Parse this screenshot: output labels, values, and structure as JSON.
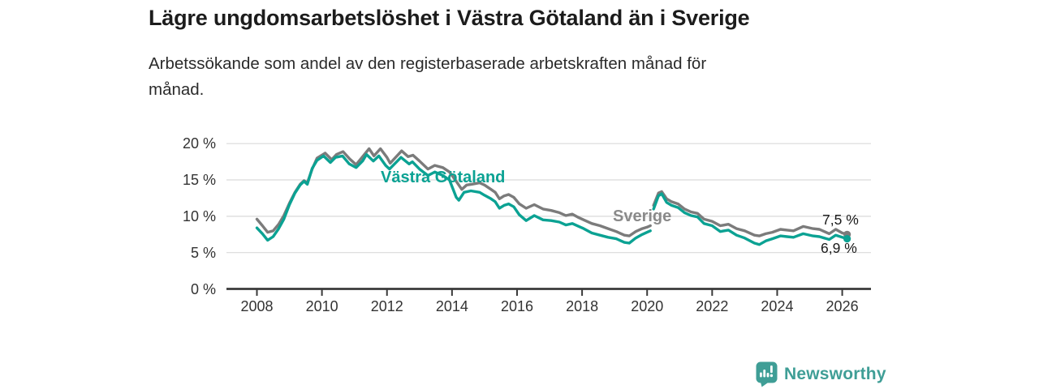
{
  "title": "Lägre ungdomsarbetslöshet i Västra Götaland än i Sverige",
  "subtitle_lines": [
    "Arbetssökande som andel av den registerbaserade arbetskraften månad för",
    "månad."
  ],
  "branding": {
    "name": "Newsworthy",
    "color": "#3f9e96"
  },
  "colors": {
    "sverige_line": "#7b7b7b",
    "sverige_label": "#8a8a8a",
    "vastra_gotaland": "#0ba293",
    "gridline": "#dadada",
    "axis": "#3a3a3a",
    "tick_text": "#333333"
  },
  "chart_data": {
    "type": "line",
    "title": "Lägre ungdomsarbetslöshet i Västra Götaland än i Sverige",
    "subtitle": "Arbetssökande som andel av den registerbaserade arbetskraften månad för månad.",
    "x_unit": "year (monthly data)",
    "xlim": [
      2007.1,
      2026.9
    ],
    "ylim": [
      0,
      20
    ],
    "grid": "horizontal",
    "legend_position": "inline-labels",
    "x_ticks": [
      2008,
      2010,
      2012,
      2014,
      2016,
      2018,
      2020,
      2022,
      2024,
      2026
    ],
    "x_tick_labels": [
      "2008",
      "2010",
      "2012",
      "2014",
      "2016",
      "2018",
      "2020",
      "2022",
      "2024",
      "2026"
    ],
    "y_ticks": [
      0,
      5,
      10,
      15,
      20
    ],
    "y_tick_labels": [
      "0 %",
      "5 %",
      "10 %",
      "15 %",
      "20 %"
    ],
    "series": [
      {
        "name": "Sverige",
        "end_label": "7,5 %",
        "end_value": 7.5,
        "color": "#7b7b7b",
        "points": [
          [
            2008.0,
            9.6
          ],
          [
            2008.17,
            8.7
          ],
          [
            2008.33,
            7.8
          ],
          [
            2008.5,
            8.0
          ],
          [
            2008.67,
            8.9
          ],
          [
            2008.83,
            10.1
          ],
          [
            2009.0,
            11.8
          ],
          [
            2009.17,
            13.3
          ],
          [
            2009.33,
            14.4
          ],
          [
            2009.45,
            14.9
          ],
          [
            2009.55,
            14.6
          ],
          [
            2009.7,
            16.5
          ],
          [
            2009.85,
            18.0
          ],
          [
            2010.1,
            18.7
          ],
          [
            2010.3,
            17.8
          ],
          [
            2010.45,
            18.5
          ],
          [
            2010.65,
            18.9
          ],
          [
            2010.85,
            17.9
          ],
          [
            2011.05,
            17.1
          ],
          [
            2011.25,
            18.2
          ],
          [
            2011.45,
            19.3
          ],
          [
            2011.6,
            18.3
          ],
          [
            2011.8,
            19.3
          ],
          [
            2012.0,
            18.1
          ],
          [
            2012.1,
            17.3
          ],
          [
            2012.45,
            19.0
          ],
          [
            2012.65,
            18.2
          ],
          [
            2012.8,
            18.4
          ],
          [
            2013.0,
            17.6
          ],
          [
            2013.26,
            16.5
          ],
          [
            2013.47,
            17.0
          ],
          [
            2013.72,
            16.7
          ],
          [
            2013.92,
            16.1
          ],
          [
            2014.13,
            14.8
          ],
          [
            2014.3,
            13.7
          ],
          [
            2014.45,
            14.3
          ],
          [
            2014.6,
            14.4
          ],
          [
            2014.85,
            14.6
          ],
          [
            2015.0,
            14.3
          ],
          [
            2015.2,
            13.7
          ],
          [
            2015.33,
            13.3
          ],
          [
            2015.46,
            12.4
          ],
          [
            2015.6,
            12.8
          ],
          [
            2015.74,
            13.0
          ],
          [
            2015.9,
            12.6
          ],
          [
            2016.07,
            11.7
          ],
          [
            2016.28,
            11.1
          ],
          [
            2016.53,
            11.6
          ],
          [
            2016.8,
            11.0
          ],
          [
            2017.05,
            10.8
          ],
          [
            2017.3,
            10.5
          ],
          [
            2017.5,
            10.1
          ],
          [
            2017.7,
            10.3
          ],
          [
            2017.9,
            9.8
          ],
          [
            2018.05,
            9.5
          ],
          [
            2018.3,
            9.0
          ],
          [
            2018.55,
            8.7
          ],
          [
            2018.8,
            8.3
          ],
          [
            2019.05,
            7.9
          ],
          [
            2019.3,
            7.4
          ],
          [
            2019.45,
            7.3
          ],
          [
            2019.65,
            7.9
          ],
          [
            2019.85,
            8.3
          ],
          [
            2020.0,
            8.5
          ],
          [
            2020.1,
            8.7
          ],
          [
            2020.15,
            null
          ],
          [
            2020.2,
            11.5
          ],
          [
            2020.35,
            13.2
          ],
          [
            2020.45,
            13.4
          ],
          [
            2020.6,
            12.4
          ],
          [
            2020.75,
            12.0
          ],
          [
            2020.95,
            11.7
          ],
          [
            2021.15,
            11.0
          ],
          [
            2021.35,
            10.6
          ],
          [
            2021.55,
            10.4
          ],
          [
            2021.75,
            9.6
          ],
          [
            2022.0,
            9.3
          ],
          [
            2022.25,
            8.7
          ],
          [
            2022.5,
            8.9
          ],
          [
            2022.75,
            8.3
          ],
          [
            2023.0,
            8.0
          ],
          [
            2023.3,
            7.4
          ],
          [
            2023.45,
            7.3
          ],
          [
            2023.65,
            7.6
          ],
          [
            2023.85,
            7.8
          ],
          [
            2024.1,
            8.2
          ],
          [
            2024.3,
            8.1
          ],
          [
            2024.5,
            8.0
          ],
          [
            2024.8,
            8.6
          ],
          [
            2025.1,
            8.3
          ],
          [
            2025.3,
            8.2
          ],
          [
            2025.6,
            7.6
          ],
          [
            2025.8,
            8.2
          ],
          [
            2026.0,
            7.7
          ],
          [
            2026.15,
            7.5
          ]
        ]
      },
      {
        "name": "Västra Götaland",
        "end_label": "6,9 %",
        "end_value": 6.9,
        "color": "#0ba293",
        "points": [
          [
            2008.0,
            8.4
          ],
          [
            2008.17,
            7.6
          ],
          [
            2008.33,
            6.7
          ],
          [
            2008.5,
            7.2
          ],
          [
            2008.67,
            8.3
          ],
          [
            2008.83,
            9.6
          ],
          [
            2009.0,
            11.6
          ],
          [
            2009.17,
            13.2
          ],
          [
            2009.33,
            14.3
          ],
          [
            2009.45,
            14.8
          ],
          [
            2009.55,
            14.4
          ],
          [
            2009.7,
            16.6
          ],
          [
            2009.85,
            17.7
          ],
          [
            2010.05,
            18.3
          ],
          [
            2010.26,
            17.4
          ],
          [
            2010.42,
            18.1
          ],
          [
            2010.63,
            18.3
          ],
          [
            2010.84,
            17.2
          ],
          [
            2011.05,
            16.7
          ],
          [
            2011.25,
            17.6
          ],
          [
            2011.37,
            18.5
          ],
          [
            2011.58,
            17.6
          ],
          [
            2011.75,
            18.3
          ],
          [
            2011.96,
            17.0
          ],
          [
            2012.08,
            16.5
          ],
          [
            2012.43,
            18.1
          ],
          [
            2012.68,
            17.2
          ],
          [
            2012.78,
            17.5
          ],
          [
            2013.0,
            16.5
          ],
          [
            2013.26,
            15.6
          ],
          [
            2013.47,
            16.1
          ],
          [
            2013.72,
            15.6
          ],
          [
            2013.92,
            15.0
          ],
          [
            2014.13,
            12.6
          ],
          [
            2014.21,
            12.2
          ],
          [
            2014.37,
            13.3
          ],
          [
            2014.58,
            13.5
          ],
          [
            2014.85,
            13.3
          ],
          [
            2015.0,
            12.9
          ],
          [
            2015.2,
            12.4
          ],
          [
            2015.33,
            12.0
          ],
          [
            2015.46,
            11.1
          ],
          [
            2015.6,
            11.5
          ],
          [
            2015.74,
            11.7
          ],
          [
            2015.9,
            11.3
          ],
          [
            2016.07,
            10.2
          ],
          [
            2016.28,
            9.4
          ],
          [
            2016.53,
            10.1
          ],
          [
            2016.8,
            9.5
          ],
          [
            2017.05,
            9.4
          ],
          [
            2017.3,
            9.2
          ],
          [
            2017.5,
            8.8
          ],
          [
            2017.7,
            9.0
          ],
          [
            2017.9,
            8.6
          ],
          [
            2018.05,
            8.3
          ],
          [
            2018.3,
            7.7
          ],
          [
            2018.55,
            7.4
          ],
          [
            2018.8,
            7.1
          ],
          [
            2019.05,
            6.9
          ],
          [
            2019.3,
            6.4
          ],
          [
            2019.45,
            6.3
          ],
          [
            2019.65,
            7.0
          ],
          [
            2019.85,
            7.5
          ],
          [
            2020.0,
            7.8
          ],
          [
            2020.1,
            8.0
          ],
          [
            2020.15,
            null
          ],
          [
            2020.2,
            11.0
          ],
          [
            2020.35,
            12.8
          ],
          [
            2020.45,
            13.1
          ],
          [
            2020.6,
            11.9
          ],
          [
            2020.75,
            11.5
          ],
          [
            2020.95,
            11.2
          ],
          [
            2021.15,
            10.5
          ],
          [
            2021.35,
            10.1
          ],
          [
            2021.55,
            9.9
          ],
          [
            2021.75,
            9.0
          ],
          [
            2022.0,
            8.7
          ],
          [
            2022.25,
            7.9
          ],
          [
            2022.5,
            8.1
          ],
          [
            2022.75,
            7.4
          ],
          [
            2023.0,
            7.0
          ],
          [
            2023.3,
            6.3
          ],
          [
            2023.45,
            6.1
          ],
          [
            2023.65,
            6.6
          ],
          [
            2023.85,
            6.9
          ],
          [
            2024.1,
            7.3
          ],
          [
            2024.3,
            7.2
          ],
          [
            2024.5,
            7.1
          ],
          [
            2024.8,
            7.6
          ],
          [
            2025.1,
            7.3
          ],
          [
            2025.3,
            7.2
          ],
          [
            2025.6,
            6.8
          ],
          [
            2025.8,
            7.4
          ],
          [
            2026.0,
            7.1
          ],
          [
            2026.15,
            6.9
          ]
        ]
      }
    ]
  }
}
